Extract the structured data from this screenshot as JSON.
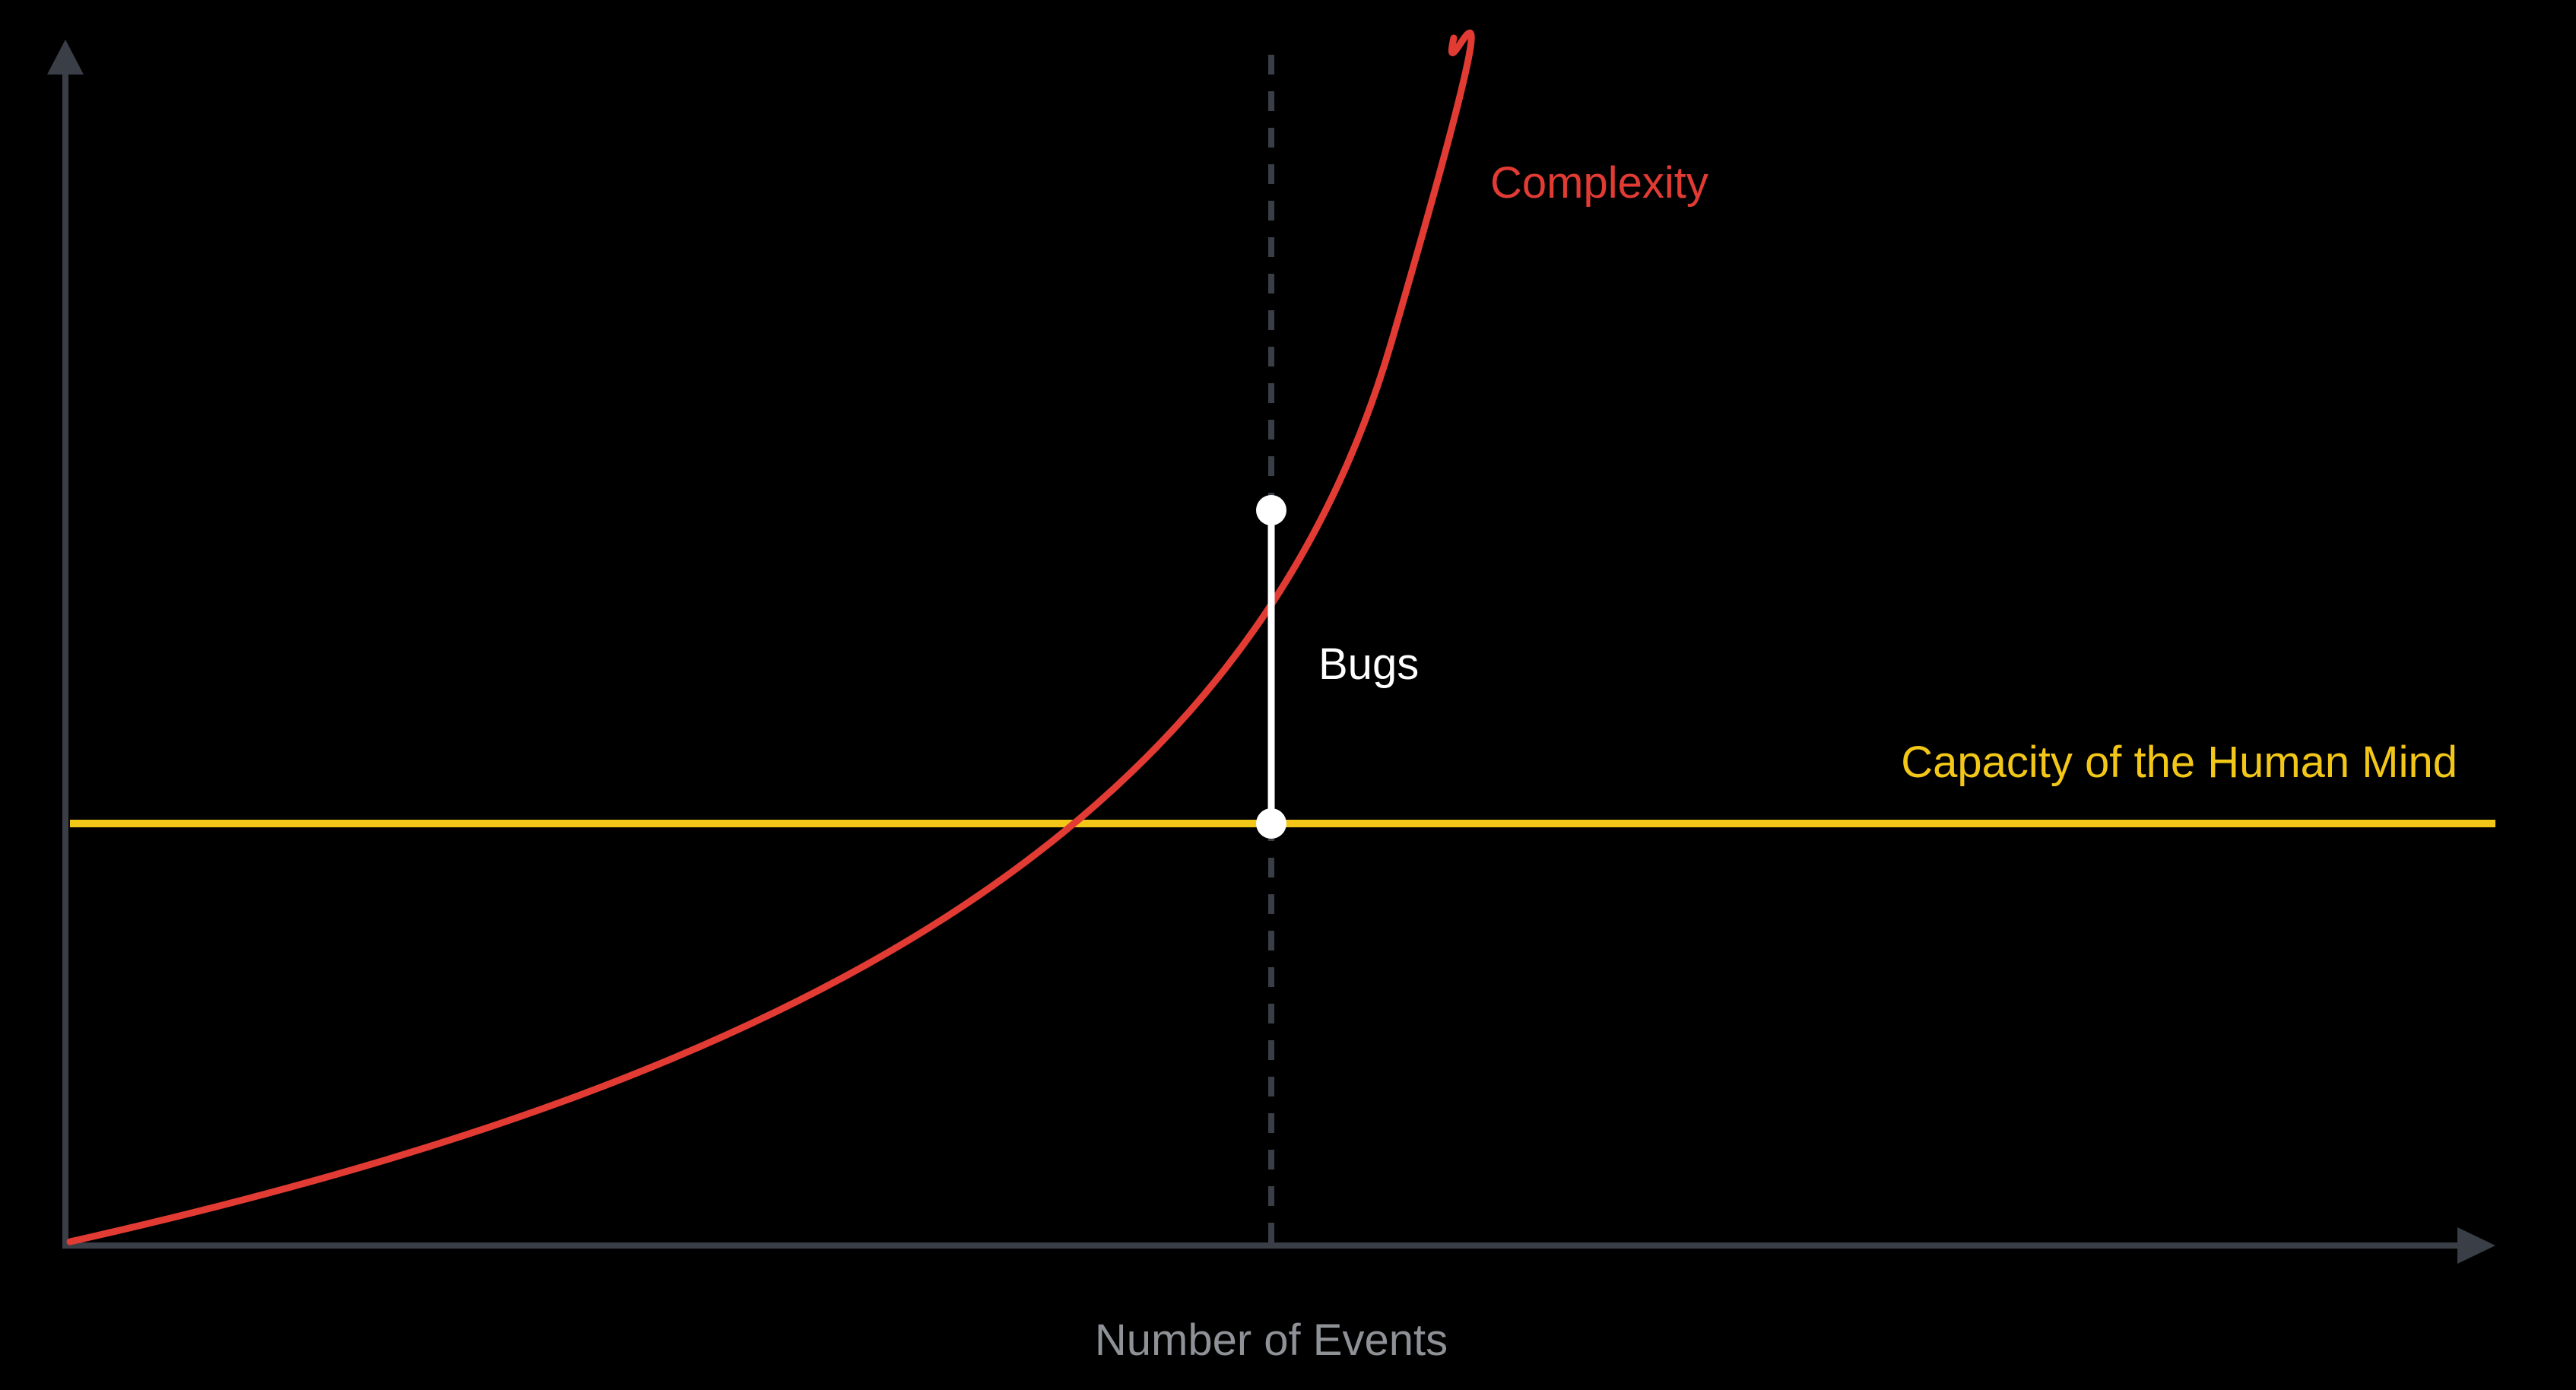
{
  "colors": {
    "background": "#000000",
    "axis": "#3a3f47",
    "complexity": "#e23b34",
    "capacity": "#f2c718",
    "bugs": "#ffffff",
    "axis_label": "#8e9196"
  },
  "labels": {
    "complexity": "Complexity",
    "bugs": "Bugs",
    "capacity": "Capacity of the Human Mind",
    "x_axis": "Number of Events"
  }
}
